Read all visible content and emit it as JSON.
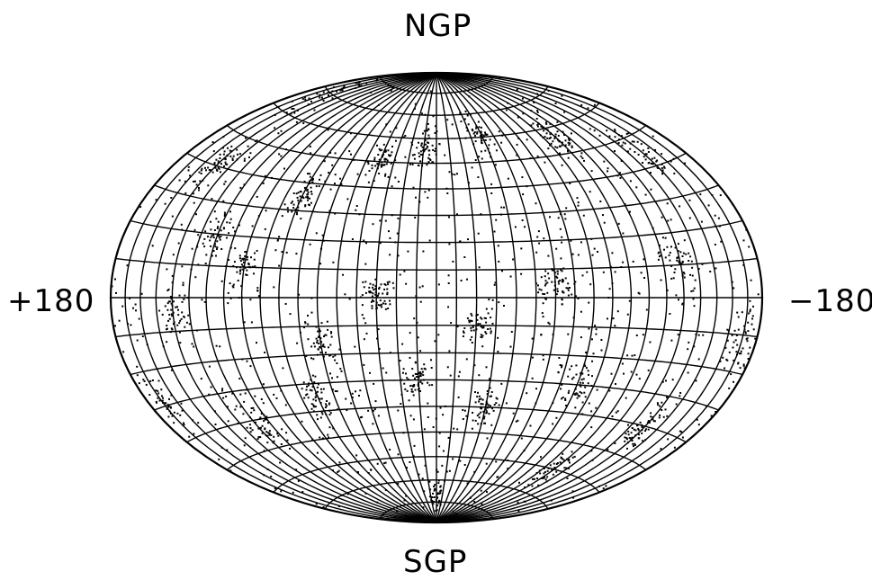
{
  "labels": {
    "top": "NGP",
    "bottom": "SGP",
    "left": "+180",
    "right": "−180"
  },
  "projection": "hammer-aitoff",
  "grid": {
    "meridian_step_deg": 10,
    "parallel_step_deg": 10
  },
  "points": {
    "color": "#000000",
    "description_clusters": [
      {
        "lon": 150,
        "lat": 40,
        "spread": 8,
        "n": 60
      },
      {
        "lon": 120,
        "lat": 20,
        "spread": 7,
        "n": 50
      },
      {
        "lon": 80,
        "lat": 35,
        "spread": 6,
        "n": 55
      },
      {
        "lon": 40,
        "lat": 50,
        "spread": 6,
        "n": 50
      },
      {
        "lon": 10,
        "lat": 55,
        "spread": 7,
        "n": 50
      },
      {
        "lon": -40,
        "lat": 60,
        "spread": 8,
        "n": 45
      },
      {
        "lon": -100,
        "lat": 55,
        "spread": 8,
        "n": 55
      },
      {
        "lon": -150,
        "lat": 45,
        "spread": 8,
        "n": 50
      },
      {
        "lon": -130,
        "lat": 10,
        "spread": 8,
        "n": 45
      },
      {
        "lon": -60,
        "lat": 5,
        "spread": 6,
        "n": 55
      },
      {
        "lon": -20,
        "lat": -10,
        "spread": 6,
        "n": 50
      },
      {
        "lon": 30,
        "lat": 0,
        "spread": 6,
        "n": 55
      },
      {
        "lon": 60,
        "lat": -15,
        "spread": 7,
        "n": 50
      },
      {
        "lon": 100,
        "lat": 10,
        "spread": 7,
        "n": 50
      },
      {
        "lon": 140,
        "lat": -5,
        "spread": 7,
        "n": 50
      },
      {
        "lon": 170,
        "lat": -30,
        "spread": 8,
        "n": 45
      },
      {
        "lon": 120,
        "lat": -40,
        "spread": 8,
        "n": 50
      },
      {
        "lon": 70,
        "lat": -35,
        "spread": 7,
        "n": 50
      },
      {
        "lon": 10,
        "lat": -30,
        "spread": 6,
        "n": 55
      },
      {
        "lon": -30,
        "lat": -40,
        "spread": 7,
        "n": 50
      },
      {
        "lon": -80,
        "lat": -30,
        "spread": 7,
        "n": 50
      },
      {
        "lon": -140,
        "lat": -40,
        "spread": 8,
        "n": 55
      },
      {
        "lon": -110,
        "lat": -60,
        "spread": 8,
        "n": 45
      },
      {
        "lon": 0,
        "lat": -75,
        "spread": 10,
        "n": 40
      },
      {
        "lon": 160,
        "lat": 70,
        "spread": 10,
        "n": 35
      },
      {
        "lon": -170,
        "lat": -10,
        "spread": 8,
        "n": 45
      }
    ]
  }
}
